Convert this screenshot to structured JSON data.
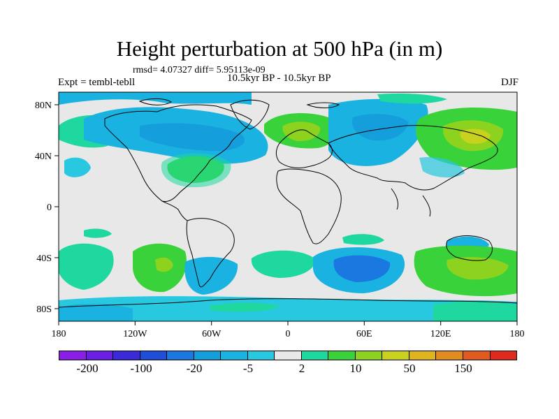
{
  "title": "Height perturbation at 500 hPa (in m)",
  "stats_line": "rmsd= 4.07327 diff= 5.95113e-09",
  "experiment_label": "Expt = tembl-tebll",
  "period_label": "10.5kyr BP - 10.5kyr BP",
  "season_label": "DJF",
  "map": {
    "x_axis_labels": [
      "180",
      "120W",
      "60W",
      "0",
      "60E",
      "120E",
      "180"
    ],
    "y_axis_labels": [
      "80N",
      "40N",
      "0",
      "40S",
      "80S"
    ],
    "background_color": "#e8e8e8"
  },
  "colorbar": {
    "colors": [
      "#8b1ee6",
      "#6a1ee6",
      "#3a2ad8",
      "#1f4ed8",
      "#1a78e0",
      "#159edc",
      "#1ab2e0",
      "#28c8e0",
      "#e8e8e8",
      "#1ed8a0",
      "#3ad23a",
      "#8cd21e",
      "#c8d21e",
      "#e0b41e",
      "#e08c1e",
      "#e05a1e",
      "#e02a1e"
    ],
    "labels": [
      "-200",
      "-100",
      "-20",
      "-5",
      "2",
      "10",
      "50",
      "150"
    ]
  }
}
